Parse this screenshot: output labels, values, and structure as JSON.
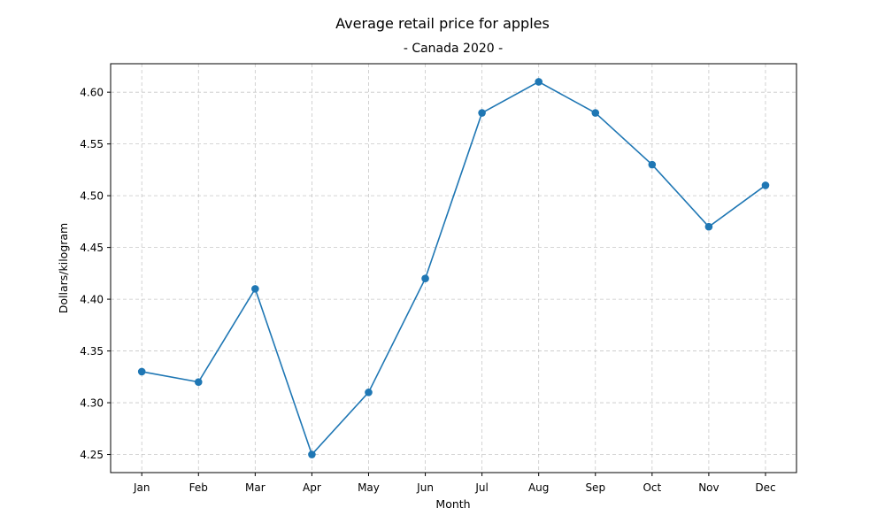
{
  "chart_data": {
    "type": "line",
    "title": "Average retail price for apples",
    "subtitle": "- Canada 2020 -",
    "xlabel": "Month",
    "ylabel": "Dollars/kilogram",
    "categories": [
      "Jan",
      "Feb",
      "Mar",
      "Apr",
      "May",
      "Jun",
      "Jul",
      "Aug",
      "Sep",
      "Oct",
      "Nov",
      "Dec"
    ],
    "values": [
      4.33,
      4.32,
      4.41,
      4.25,
      4.31,
      4.42,
      4.58,
      4.61,
      4.58,
      4.53,
      4.47,
      4.51
    ],
    "ylim": [
      4.2325,
      4.6275
    ],
    "yticks": [
      "4.25",
      "4.30",
      "4.35",
      "4.40",
      "4.45",
      "4.50",
      "4.55",
      "4.60"
    ],
    "grid": true,
    "marker": "circle",
    "color": "#1f77b4"
  }
}
